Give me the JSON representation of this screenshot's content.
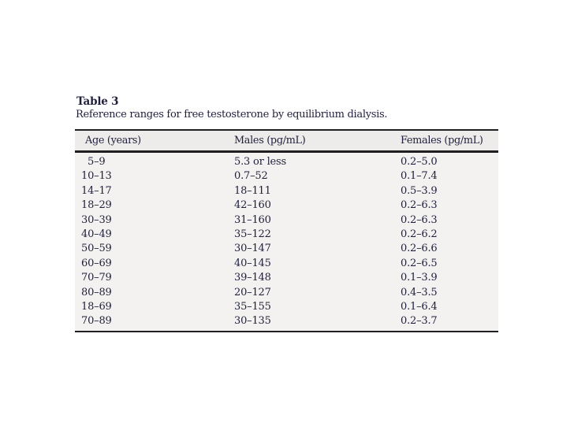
{
  "table": {
    "label": "Table 3",
    "caption": "Reference ranges for free testosterone by equilibrium dialysis.",
    "columns": [
      "Age (years)",
      "Males (pg/mL)",
      "Females (pg/mL)"
    ],
    "rows": [
      {
        "age": "5–9",
        "males": "5.3 or less",
        "females": "0.2–5.0"
      },
      {
        "age": "10–13",
        "males": "0.7–52",
        "females": "0.1–7.4"
      },
      {
        "age": "14–17",
        "males": "18–111",
        "females": "0.5–3.9"
      },
      {
        "age": "18–29",
        "males": "42–160",
        "females": "0.2–6.3"
      },
      {
        "age": "30–39",
        "males": "31–160",
        "females": "0.2–6.3"
      },
      {
        "age": "40–49",
        "males": "35–122",
        "females": "0.2–6.2"
      },
      {
        "age": "50–59",
        "males": "30–147",
        "females": "0.2–6.6"
      },
      {
        "age": "60–69",
        "males": "40–145",
        "females": "0.2–6.5"
      },
      {
        "age": "70–79",
        "males": "39–148",
        "females": "0.1–3.9"
      },
      {
        "age": "80–89",
        "males": "20–127",
        "females": "0.4–3.5"
      },
      {
        "age": "18–69",
        "males": "35–155",
        "females": "0.1–6.4"
      },
      {
        "age": "70–89",
        "males": "30–135",
        "females": "0.2–3.7"
      }
    ]
  },
  "chart_data": {
    "type": "table",
    "title": "Table 3: Reference ranges for free testosterone by equilibrium dialysis.",
    "categories": [
      "5–9",
      "10–13",
      "14–17",
      "18–29",
      "30–39",
      "40–49",
      "50–59",
      "60–69",
      "70–79",
      "80–89",
      "18–69",
      "70–89"
    ],
    "series": [
      {
        "name": "Males (pg/mL)",
        "values": [
          "5.3 or less",
          "0.7–52",
          "18–111",
          "42–160",
          "31–160",
          "35–122",
          "30–147",
          "40–145",
          "39–148",
          "20–127",
          "35–155",
          "30–135"
        ]
      },
      {
        "name": "Females (pg/mL)",
        "values": [
          "0.2–5.0",
          "0.1–7.4",
          "0.5–3.9",
          "0.2–6.3",
          "0.2–6.3",
          "0.2–6.2",
          "0.2–6.6",
          "0.2–6.5",
          "0.1–3.9",
          "0.4–3.5",
          "0.1–6.4",
          "0.2–3.7"
        ]
      }
    ]
  },
  "colors": {
    "text": "#1f1f3c",
    "rule": "#1f1f22",
    "header_bg": "#edecea",
    "body_bg": "#f3f2f0",
    "page_bg": "#ffffff"
  }
}
